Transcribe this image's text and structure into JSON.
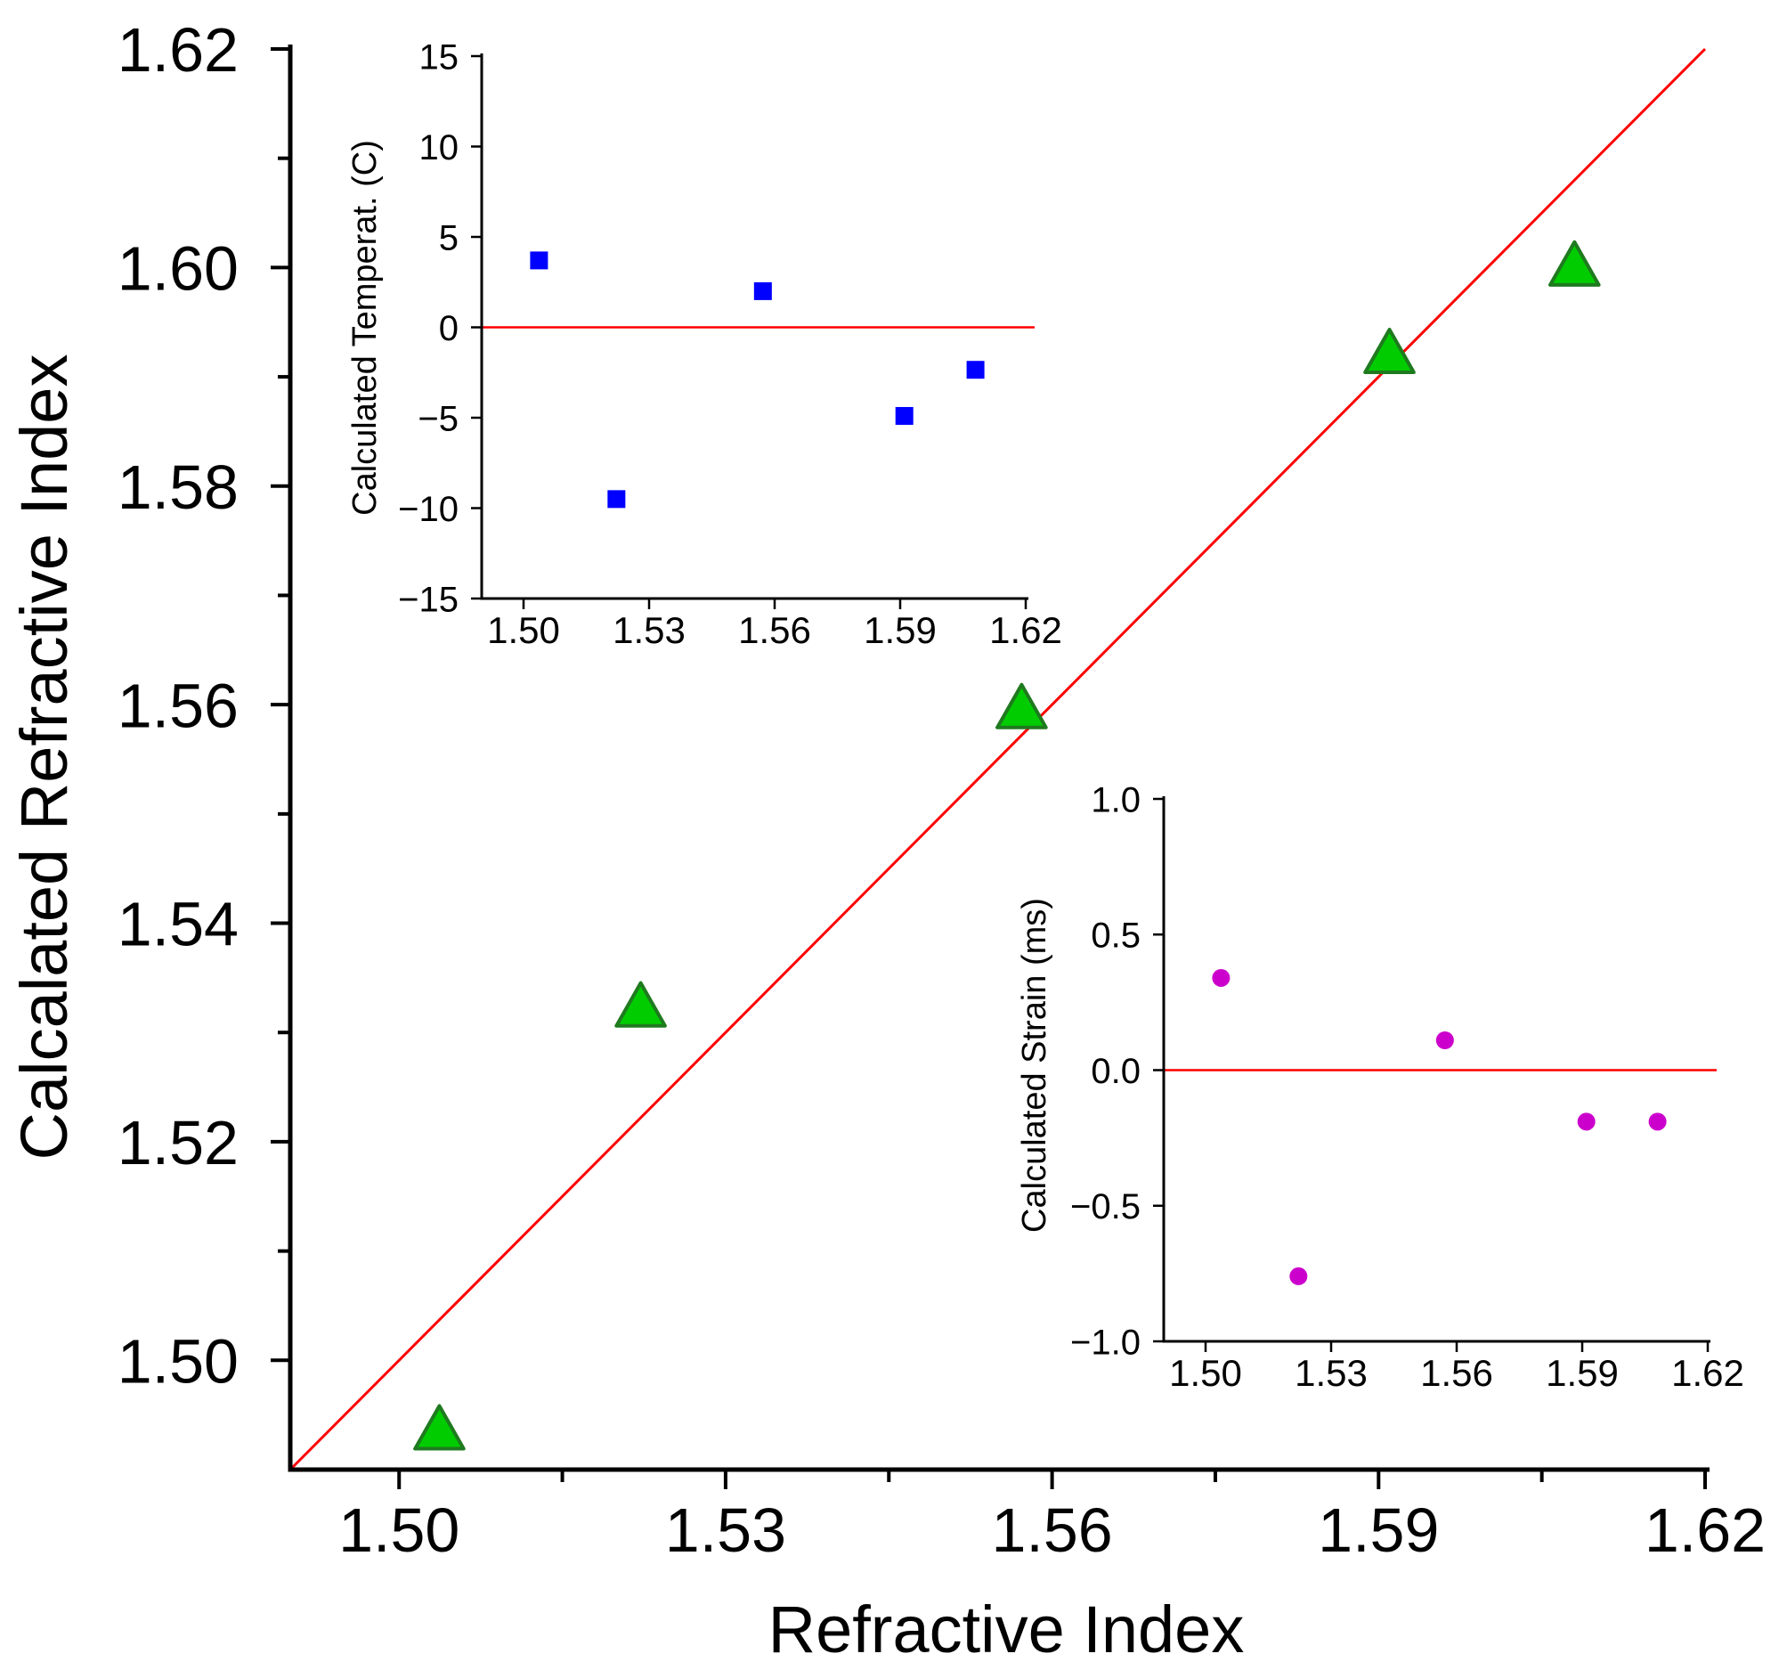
{
  "chart_data": [
    {
      "id": "main",
      "type": "scatter",
      "xlabel": "Refractive Index",
      "ylabel": "Calcalated Refractive Index",
      "xlim": [
        1.49,
        1.62
      ],
      "ylim": [
        1.49,
        1.62
      ],
      "xticks": [
        1.5,
        1.53,
        1.56,
        1.59,
        1.62
      ],
      "xtick_labels": [
        "1.50",
        "1.53",
        "1.56",
        "1.59",
        "1.62"
      ],
      "yticks": [
        1.5,
        1.52,
        1.54,
        1.56,
        1.58,
        1.6,
        1.62
      ],
      "ytick_labels": [
        "1.50",
        "1.52",
        "1.54",
        "1.56",
        "1.58",
        "1.60",
        "1.62"
      ],
      "series": [
        {
          "name": "Calculated",
          "marker": "triangle",
          "color": "#00cc00",
          "edge_color": "#1f7a1f",
          "x": [
            1.5037,
            1.5222,
            1.5572,
            1.591,
            1.608
          ],
          "y": [
            1.4935,
            1.5322,
            1.5595,
            1.592,
            1.6
          ]
        }
      ],
      "reference_line": {
        "type": "y=x",
        "color": "#ff0000",
        "from": 1.49,
        "to": 1.62
      }
    },
    {
      "id": "inset_temperature",
      "type": "scatter",
      "xlabel": "",
      "ylabel": "Calculated Temperat. (C)",
      "xlim": [
        1.49,
        1.62
      ],
      "ylim": [
        -15,
        15
      ],
      "xticks": [
        1.5,
        1.53,
        1.56,
        1.59,
        1.62
      ],
      "xtick_labels": [
        "1.50",
        "1.53",
        "1.56",
        "1.59",
        "1.62"
      ],
      "yticks": [
        -15,
        -10,
        -5,
        0,
        5,
        10,
        15
      ],
      "ytick_labels": [
        "−15",
        "−10",
        "−5",
        "0",
        "5",
        "10",
        "15"
      ],
      "series": [
        {
          "name": "Temperature",
          "marker": "square",
          "color": "#0000ff",
          "x": [
            1.5037,
            1.5222,
            1.5572,
            1.591,
            1.608
          ],
          "y": [
            3.7,
            -9.5,
            2.0,
            -4.9,
            -2.35
          ]
        }
      ],
      "reference_line": {
        "type": "y=0",
        "color": "#ff0000"
      }
    },
    {
      "id": "inset_strain",
      "type": "scatter",
      "xlabel": "",
      "ylabel": "Calculated Strain (ms)",
      "xlim": [
        1.49,
        1.62
      ],
      "ylim": [
        -1.0,
        1.0
      ],
      "xticks": [
        1.5,
        1.53,
        1.56,
        1.59,
        1.62
      ],
      "xtick_labels": [
        "1.50",
        "1.53",
        "1.56",
        "1.59",
        "1.62"
      ],
      "yticks": [
        -1.0,
        -0.5,
        0.0,
        0.5,
        1.0
      ],
      "ytick_labels": [
        "−1.0",
        "−0.5",
        "0.0",
        "0.5",
        "1.0"
      ],
      "series": [
        {
          "name": "Strain",
          "marker": "circle",
          "color": "#cc00cc",
          "x": [
            1.5037,
            1.5222,
            1.5572,
            1.591,
            1.608
          ],
          "y": [
            0.34,
            -0.76,
            0.11,
            -0.19,
            -0.19
          ]
        }
      ],
      "reference_line": {
        "type": "y=0",
        "color": "#ff0000"
      }
    }
  ]
}
